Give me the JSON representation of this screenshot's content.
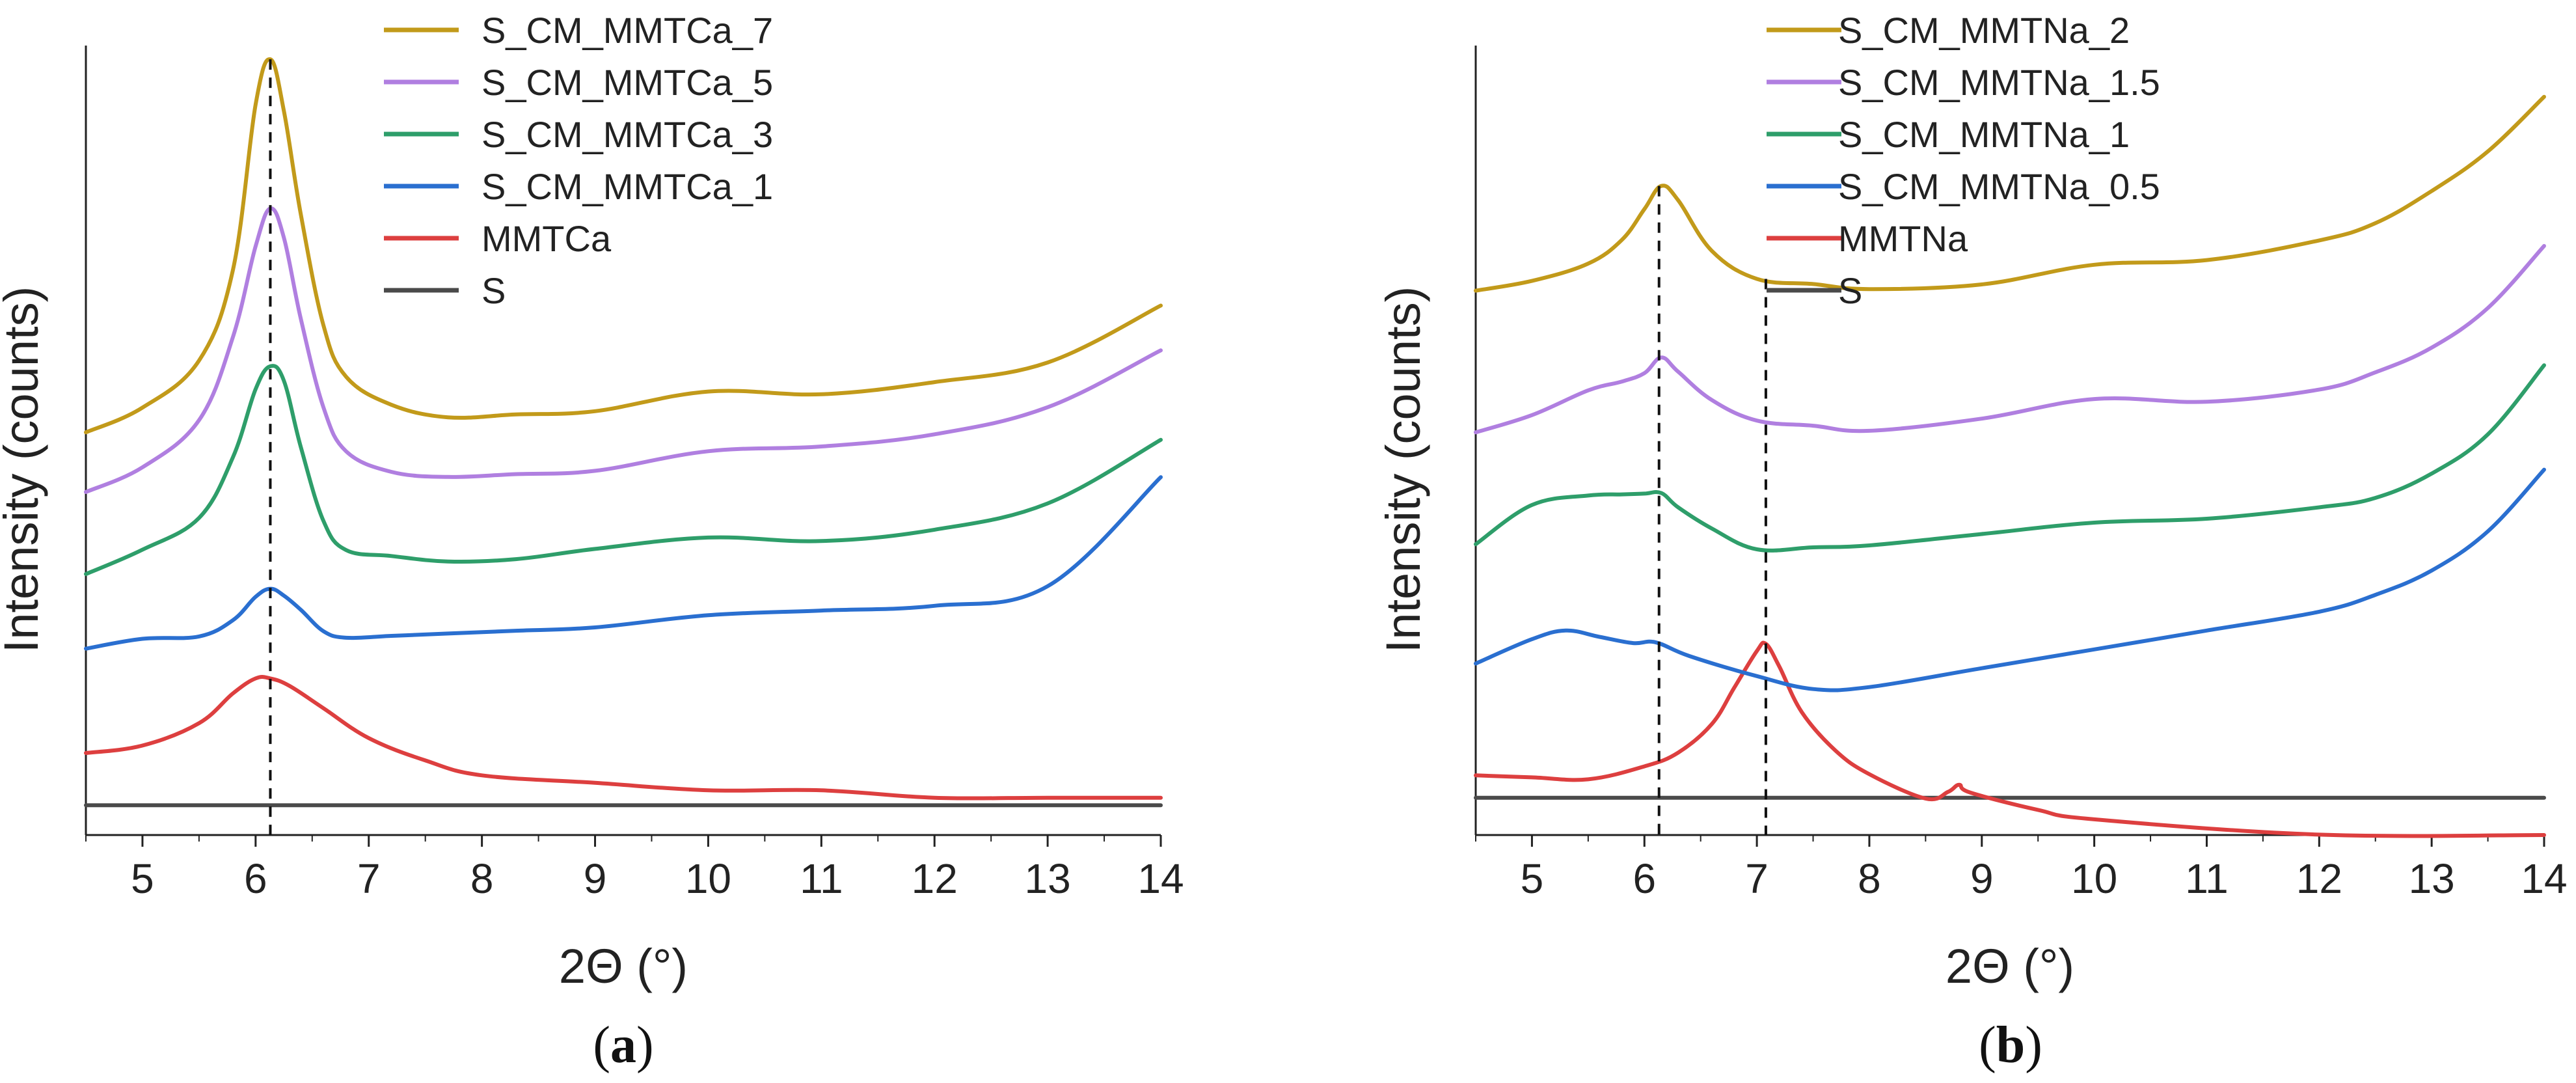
{
  "colors": {
    "gold": "#c29a1a",
    "purple": "#b07fe0",
    "green": "#2e9e6a",
    "blue": "#2a6fd0",
    "red": "#dd3f3f",
    "gray": "#4a4a4a",
    "axis": "#222222"
  },
  "chart_data": [
    {
      "id": "a",
      "type": "line",
      "panel_label": {
        "open": "(",
        "letter": "a",
        "close": ")"
      },
      "xlabel": "2Θ (°)",
      "ylabel": "Intensity (counts)",
      "xlim": [
        4.5,
        14
      ],
      "ylim": [
        0,
        105
      ],
      "xticks": [
        5,
        6,
        7,
        8,
        9,
        10,
        11,
        12,
        13,
        14
      ],
      "yticks_shown": false,
      "legend_position": "top",
      "reference_lines": [
        {
          "x": 6.13
        }
      ],
      "series": [
        {
          "name": "S_CM_MMTCa_7",
          "color": "gold",
          "baseline": 54,
          "tail": 60,
          "x": [
            4.5,
            5.0,
            5.5,
            5.8,
            6.0,
            6.13,
            6.25,
            6.4,
            6.6,
            6.8,
            7.2,
            7.7,
            8.3,
            9.0,
            10.0,
            11.0,
            12.0,
            13.0,
            14.0
          ],
          "y": [
            0,
            3,
            9,
            21,
            43,
            49,
            42,
            28,
            13,
            6,
            2,
            0,
            0,
            0,
            2,
            1,
            2,
            4,
            11
          ]
        },
        {
          "name": "S_CM_MMTCa_5",
          "color": "purple",
          "baseline": 46,
          "tail": 52,
          "x": [
            4.5,
            5.0,
            5.5,
            5.8,
            6.0,
            6.13,
            6.25,
            6.4,
            6.6,
            6.8,
            7.2,
            7.7,
            8.3,
            9.0,
            10.0,
            11.0,
            12.0,
            13.0,
            14.0
          ],
          "y": [
            0,
            3,
            9,
            20,
            32,
            37,
            33,
            22,
            10,
            4,
            1,
            0,
            0,
            0,
            2,
            2,
            3,
            6,
            13
          ]
        },
        {
          "name": "S_CM_MMTCa_3",
          "color": "green",
          "baseline": 35,
          "tail": 40,
          "x": [
            4.5,
            5.0,
            5.5,
            5.8,
            6.0,
            6.13,
            6.25,
            6.4,
            6.6,
            6.8,
            7.2,
            7.7,
            8.3,
            9.0,
            10.0,
            11.0,
            12.0,
            13.0,
            14.0
          ],
          "y": [
            0,
            3,
            7,
            15,
            24,
            27,
            25,
            16,
            6,
            2,
            1,
            0,
            0,
            1,
            2,
            1,
            2,
            5,
            13
          ]
        },
        {
          "name": "S_CM_MMTCa_1",
          "color": "blue",
          "baseline": 25,
          "tail": 31,
          "x": [
            4.5,
            5.0,
            5.5,
            5.8,
            6.0,
            6.13,
            6.25,
            6.4,
            6.6,
            6.8,
            7.2,
            7.7,
            8.3,
            9.0,
            10.0,
            11.0,
            12.0,
            13.0,
            14.0
          ],
          "y": [
            0,
            1,
            1,
            3,
            6,
            7,
            6,
            4,
            1,
            0,
            0,
            0,
            0,
            0,
            1,
            1,
            1,
            3,
            17
          ]
        },
        {
          "name": "MMTCa",
          "color": "red",
          "baseline": 5,
          "tail": 5,
          "x": [
            4.5,
            5.0,
            5.5,
            5.8,
            6.0,
            6.13,
            6.3,
            6.6,
            7.0,
            7.5,
            8.0,
            9.0,
            10.0,
            11.0,
            12.0,
            13.0,
            14.0
          ],
          "y": [
            6,
            7,
            10,
            14,
            16,
            16,
            15,
            12,
            8,
            5,
            3,
            2,
            1,
            1,
            0,
            0,
            0
          ]
        },
        {
          "name": "S",
          "color": "gray",
          "baseline": 4,
          "tail": 4,
          "x": [
            4.5,
            6.0,
            8.0,
            10.0,
            12.0,
            14.0
          ],
          "y": [
            0,
            0,
            0,
            0,
            0,
            0
          ]
        }
      ]
    },
    {
      "id": "b",
      "type": "line",
      "panel_label": {
        "open": "(",
        "letter": "b",
        "close": ")"
      },
      "xlabel": "2Θ (°)",
      "ylabel": "Intensity (counts)",
      "xlim": [
        4.5,
        14
      ],
      "ylim": [
        0,
        105
      ],
      "xticks": [
        5,
        6,
        7,
        8,
        9,
        10,
        11,
        12,
        13,
        14
      ],
      "yticks_shown": false,
      "legend_position": "top",
      "reference_lines": [
        {
          "x": 6.13
        },
        {
          "x": 7.08
        }
      ],
      "series": [
        {
          "name": "S_CM_MMTNa_2",
          "color": "gold",
          "baseline": 73,
          "tail": 79,
          "x": [
            4.5,
            5.0,
            5.5,
            5.8,
            6.0,
            6.15,
            6.3,
            6.6,
            7.0,
            7.5,
            8.0,
            9.0,
            10.0,
            11.0,
            12.0,
            12.5,
            13.0,
            13.5,
            14.0
          ],
          "y": [
            0,
            1,
            3,
            6,
            10,
            13,
            11,
            4,
            0,
            -1,
            -2,
            -2,
            0,
            0,
            2,
            4,
            8,
            13,
            20
          ]
        },
        {
          "name": "S_CM_MMTNa_1.5",
          "color": "purple",
          "baseline": 54,
          "tail": 60,
          "x": [
            4.5,
            5.0,
            5.5,
            5.8,
            6.0,
            6.15,
            6.3,
            6.6,
            7.0,
            7.5,
            8.0,
            9.0,
            10.0,
            11.0,
            12.0,
            12.5,
            13.0,
            13.5,
            14.0
          ],
          "y": [
            0,
            2,
            5,
            6,
            7,
            9,
            7,
            3,
            0,
            -1,
            -2,
            -1,
            1,
            0,
            1,
            3,
            6,
            11,
            19
          ]
        },
        {
          "name": "S_CM_MMTNa_1",
          "color": "green",
          "baseline": 39,
          "tail": 44,
          "x": [
            4.5,
            5.0,
            5.5,
            5.8,
            6.0,
            6.15,
            6.3,
            6.6,
            7.0,
            7.5,
            8.0,
            9.0,
            10.0,
            11.0,
            12.0,
            12.5,
            13.0,
            13.5,
            14.0
          ],
          "y": [
            0,
            5,
            6,
            6,
            6,
            6,
            4,
            1,
            -2,
            -2,
            -2,
            -1,
            0,
            0,
            1,
            2,
            5,
            10,
            19
          ]
        },
        {
          "name": "S_CM_MMTNa_0.5",
          "color": "blue",
          "baseline": 23,
          "tail": 28,
          "x": [
            4.5,
            5.0,
            5.3,
            5.6,
            5.9,
            6.1,
            6.4,
            7.0,
            7.5,
            8.0,
            9.0,
            10.0,
            11.0,
            12.0,
            12.5,
            13.0,
            13.5,
            14.0
          ],
          "y": [
            0,
            3,
            4,
            3,
            2,
            2,
            0,
            -3,
            -5,
            -5,
            -3,
            -1,
            1,
            3,
            5,
            8,
            13,
            21
          ]
        },
        {
          "name": "MMTNa",
          "color": "red",
          "baseline": 8,
          "tail": 3,
          "x": [
            4.5,
            5.0,
            5.5,
            6.0,
            6.3,
            6.6,
            6.8,
            7.0,
            7.08,
            7.2,
            7.4,
            7.7,
            8.0,
            8.5,
            8.7,
            8.8,
            8.9,
            9.5,
            10.0,
            12.0,
            14.0
          ],
          "y": [
            0,
            0,
            0,
            2,
            4,
            8,
            13,
            18,
            19,
            16,
            10,
            5,
            2,
            -1,
            0,
            1,
            0,
            -2,
            -3,
            -4,
            -3
          ]
        },
        {
          "name": "S",
          "color": "gray",
          "baseline": 5,
          "tail": 5,
          "x": [
            4.5,
            6.0,
            8.0,
            10.0,
            12.0,
            14.0
          ],
          "y": [
            0,
            0,
            0,
            0,
            0,
            0
          ]
        }
      ]
    }
  ]
}
